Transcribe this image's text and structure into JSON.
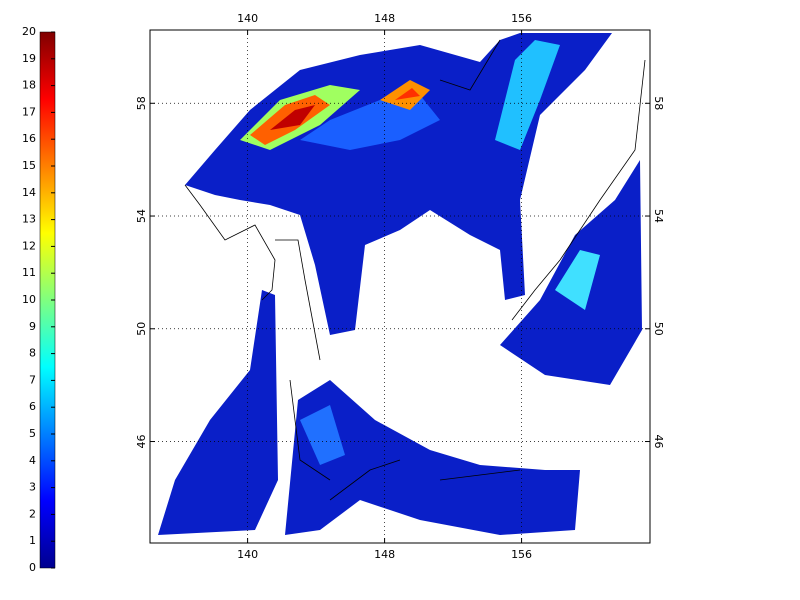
{
  "chart_data": {
    "type": "heatmap",
    "xlim": [
      134.3,
      163.5
    ],
    "xticks": [
      140,
      148,
      156
    ],
    "ylim": [
      42.4,
      60.6
    ],
    "yticks": [
      46,
      50,
      54,
      58
    ],
    "grid": true,
    "colorbar": {
      "lim": [
        0,
        20
      ],
      "ticks": [
        0,
        1,
        2,
        3,
        4,
        5,
        6,
        7,
        8,
        9,
        10,
        11,
        12,
        13,
        14,
        15,
        16,
        17,
        18,
        19,
        20
      ]
    }
  }
}
